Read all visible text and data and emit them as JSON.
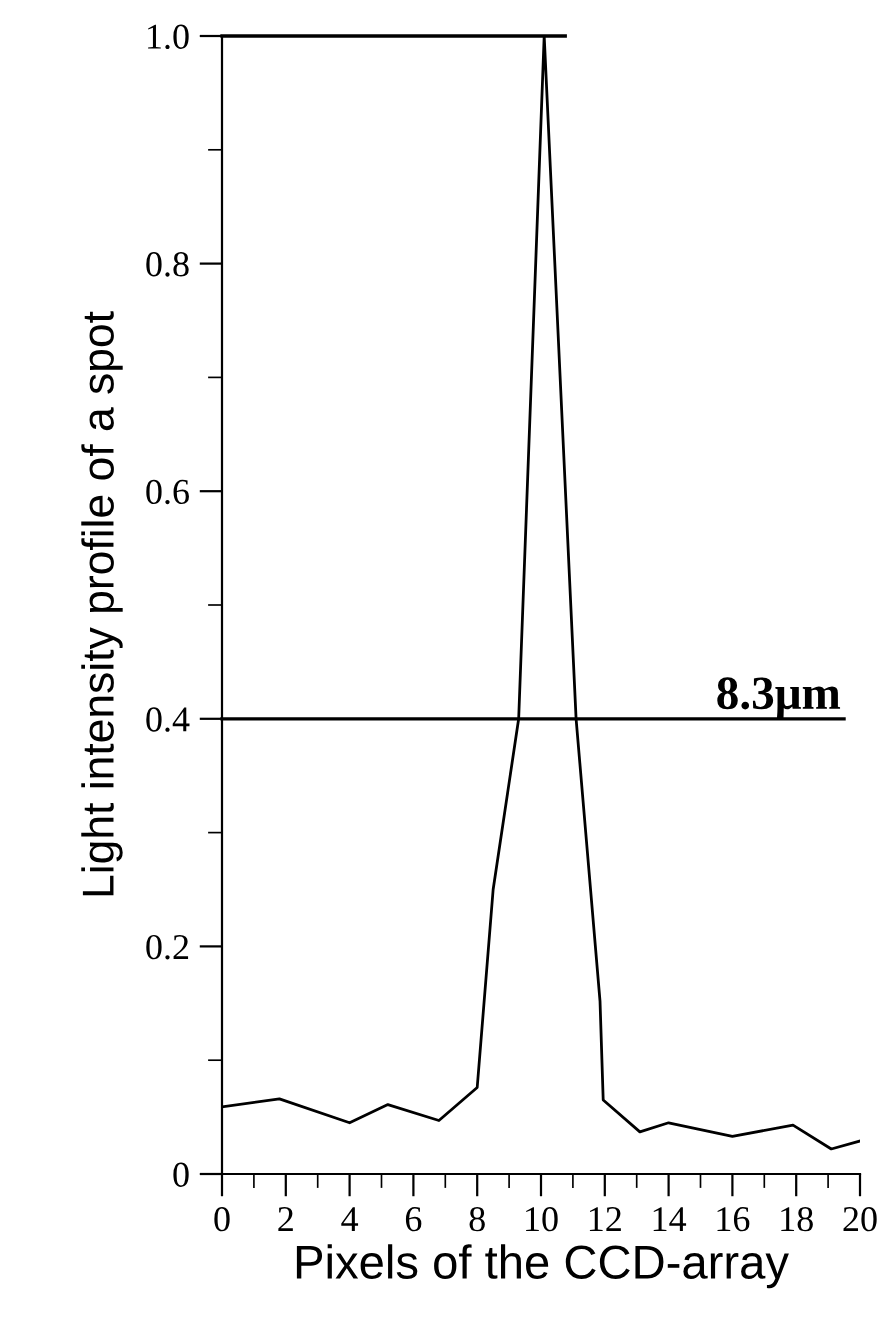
{
  "chart_data": {
    "type": "line",
    "xlabel": "Pixels of the CCD-array",
    "ylabel": "Light intensity profile of a spot",
    "x": [
      0,
      1.8,
      4.0,
      5.2,
      6.8,
      8.0,
      8.5,
      9.3,
      10.1,
      11.1,
      11.85,
      11.95,
      13.1,
      14.0,
      16.0,
      17.9,
      19.1,
      20.0
    ],
    "series": [
      {
        "color": "#000000",
        "values": [
          0.059,
          0.066,
          0.045,
          0.061,
          0.047,
          0.076,
          0.25,
          0.4,
          1.0,
          0.4,
          0.152,
          0.065,
          0.037,
          0.045,
          0.033,
          0.043,
          0.022,
          0.029
        ]
      }
    ],
    "xlim": [
      0,
      20
    ],
    "ylim": [
      0,
      1.0
    ],
    "xticks": [
      0,
      2,
      4,
      6,
      8,
      10,
      12,
      14,
      16,
      18,
      20
    ],
    "yticks": [
      0,
      0.2,
      0.4,
      0.6,
      0.8,
      {
        "value": 1.0,
        "label": "1.0"
      }
    ],
    "ref_lines": [
      {
        "axis": "y",
        "value": 1.0,
        "label": null,
        "color": "#000000"
      },
      {
        "axis": "y",
        "value": 0.4,
        "label": "8.3μm",
        "color": "#000000"
      }
    ],
    "grid": false,
    "legend": false,
    "marker": "none",
    "line_style": "solid"
  }
}
